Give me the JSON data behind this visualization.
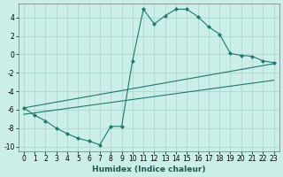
{
  "xlabel": "Humidex (Indice chaleur)",
  "bg_color": "#cceee8",
  "grid_color": "#aad8d0",
  "line_color": "#1a7a6e",
  "xlim": [
    -0.5,
    23.5
  ],
  "ylim": [
    -10.5,
    5.5
  ],
  "xticks": [
    0,
    1,
    2,
    3,
    4,
    5,
    6,
    7,
    8,
    9,
    10,
    11,
    12,
    13,
    14,
    15,
    16,
    17,
    18,
    19,
    20,
    21,
    22,
    23
  ],
  "yticks": [
    -10,
    -8,
    -6,
    -4,
    -2,
    0,
    2,
    4
  ],
  "zigzag_x": [
    0,
    1,
    2,
    3,
    4,
    5,
    6,
    7,
    8,
    9,
    10,
    11,
    12,
    13,
    14,
    15,
    16,
    17,
    18,
    19,
    20,
    21,
    22,
    23
  ],
  "zigzag_y": [
    -5.8,
    -6.6,
    -7.2,
    -8.0,
    -8.6,
    -9.1,
    -9.4,
    -9.8,
    -7.8,
    -7.8,
    -0.7,
    4.9,
    3.3,
    4.2,
    4.9,
    4.9,
    4.1,
    3.0,
    2.2,
    0.1,
    -0.1,
    -0.2,
    -0.7,
    -0.9
  ],
  "upper_line_x": [
    0,
    23
  ],
  "upper_line_y": [
    -5.8,
    -1.0
  ],
  "lower_line_x": [
    0,
    23
  ],
  "lower_line_y": [
    -6.5,
    -2.8
  ],
  "marker_style": "D",
  "marker_size": 2.0,
  "line_width": 0.8,
  "tick_fontsize": 5.5,
  "xlabel_fontsize": 6.5,
  "xlabel_color": "#1a5a50"
}
